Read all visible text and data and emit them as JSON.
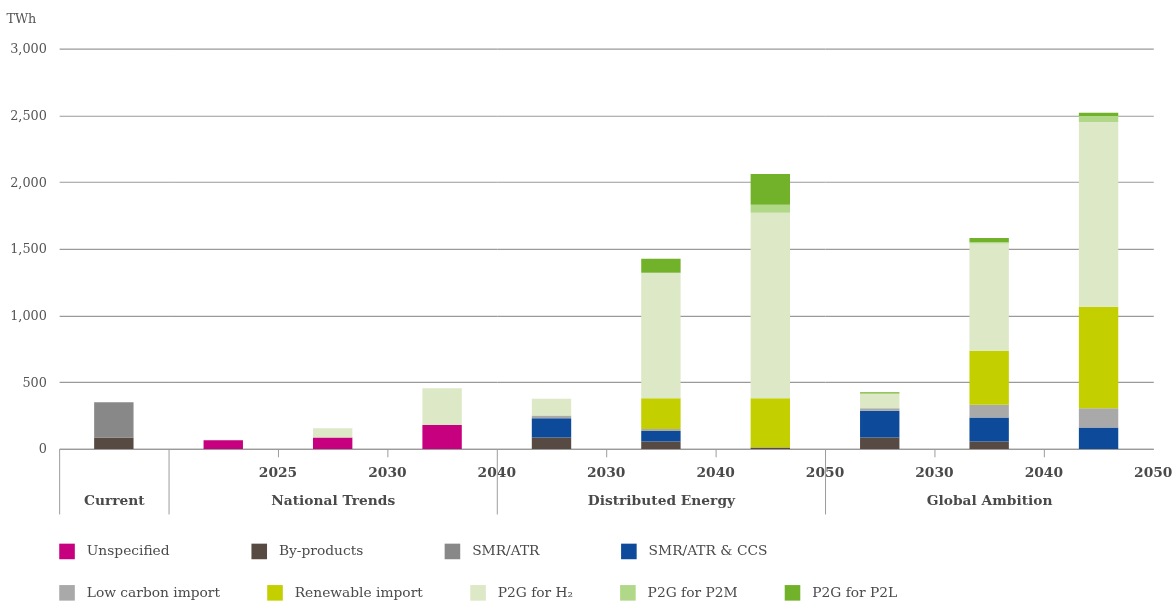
{
  "chart_data": [
    {
      "type": "bar",
      "stacked": true,
      "ylabel": "TWh",
      "xlabel": "Current",
      "categories": [
        null
      ],
      "ylim": [
        0,
        3000
      ],
      "yticks": [
        0,
        500,
        {
          "value": 1000,
          "label": "1,000"
        },
        {
          "value": 1500,
          "label": "1,500"
        },
        {
          "value": 2000,
          "label": "2,000"
        },
        {
          "value": 2500,
          "label": "2,500"
        },
        {
          "value": 3000,
          "label": "3,000"
        }
      ],
      "grid": "y",
      "legend": "bottom",
      "series": [
        {
          "name": "Unspecified",
          "color": "#c6007e",
          "values": [
            null
          ]
        },
        {
          "name": "By-products",
          "color": "#574a42",
          "values": [
            85
          ]
        },
        {
          "name": "SMR/ATR",
          "color": "#888888",
          "values": [
            265
          ]
        },
        {
          "name": "SMR/ATR & CCS",
          "color": "#0d4a9a",
          "values": [
            null
          ]
        },
        {
          "name": "Low carbon import",
          "color": "#a9a9a9",
          "values": [
            null
          ]
        },
        {
          "name": "Renewable import",
          "color": "#c4cf00",
          "values": [
            null
          ]
        },
        {
          "name": "P2G for H₂",
          "color": "#dde8c6",
          "values": [
            null
          ]
        },
        {
          "name": "P2G for P2M",
          "color": "#b0d888",
          "values": [
            null
          ]
        },
        {
          "name": "P2G for P2L",
          "color": "#72b22b",
          "values": [
            null
          ]
        }
      ]
    },
    {
      "type": "bar",
      "stacked": true,
      "xlabel": "National Trends",
      "categories": [
        "2025",
        "2030",
        "2040"
      ],
      "ylim": [
        0,
        3000
      ],
      "yticks": [
        0,
        500,
        1000,
        1500,
        2000,
        2500,
        3000
      ],
      "tick_labels": "x",
      "grid": "y",
      "series": [
        {
          "color": "#c6007e",
          "values": [
            65,
            85,
            180
          ]
        },
        {
          "color": "#dde8c6",
          "values": [
            null,
            70,
            275
          ]
        }
      ]
    },
    {
      "type": "bar",
      "stacked": true,
      "xlabel": "Distributed Energy",
      "categories": [
        "2030",
        "2040",
        "2050"
      ],
      "ylim": [
        0,
        3000
      ],
      "yticks": [
        0,
        500,
        1000,
        1500,
        2000,
        2500,
        3000
      ],
      "tick_labels": "x",
      "grid": "y",
      "series": [
        {
          "color": "#574a42",
          "values": [
            85,
            55,
            10
          ]
        },
        {
          "color": "#0d4a9a",
          "values": [
            145,
            80,
            null
          ]
        },
        {
          "color": "#a9a9a9",
          "values": [
            20,
            15,
            null
          ]
        },
        {
          "color": "#c4cf00",
          "values": [
            null,
            230,
            370
          ]
        },
        {
          "color": "#dde8c6",
          "values": [
            125,
            940,
            1390
          ]
        },
        {
          "color": "#b0d888",
          "values": [
            null,
            null,
            60
          ]
        },
        {
          "color": "#72b22b",
          "values": [
            null,
            105,
            230
          ]
        }
      ]
    },
    {
      "type": "bar",
      "stacked": true,
      "xlabel": "Global Ambition",
      "categories": [
        "2030",
        "2040",
        "2050"
      ],
      "ylim": [
        0,
        3000
      ],
      "yticks": [
        0,
        500,
        1000,
        1500,
        2000,
        2500,
        3000
      ],
      "tick_labels": "x",
      "grid": "y",
      "series": [
        {
          "color": "#574a42",
          "values": [
            85,
            55,
            null
          ]
        },
        {
          "color": "#0d4a9a",
          "values": [
            200,
            180,
            160
          ]
        },
        {
          "color": "#a9a9a9",
          "values": [
            20,
            95,
            145
          ]
        },
        {
          "color": "#c4cf00",
          "values": [
            null,
            405,
            760
          ]
        },
        {
          "color": "#dde8c6",
          "values": [
            110,
            805,
            1385
          ]
        },
        {
          "color": "#b0d888",
          "values": [
            null,
            10,
            45
          ]
        },
        {
          "color": "#72b22b",
          "values": [
            10,
            30,
            25
          ]
        }
      ]
    }
  ]
}
